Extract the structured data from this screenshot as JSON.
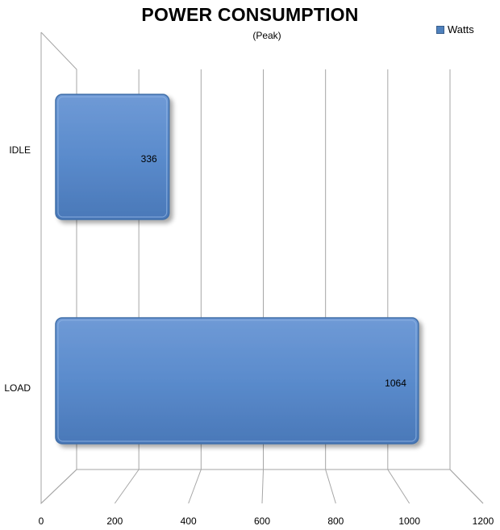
{
  "chart_data": {
    "type": "bar",
    "orientation": "horizontal",
    "title": "POWER CONSUMPTION",
    "subtitle": "(Peak)",
    "categories": [
      "IDLE",
      "LOAD"
    ],
    "series": [
      {
        "name": "Watts",
        "values": [
          336,
          1064
        ],
        "color": "#4f81bd"
      }
    ],
    "xlim": [
      0,
      1200
    ],
    "xticks": [
      0,
      200,
      400,
      600,
      800,
      1000,
      1200
    ],
    "grid": true,
    "legend_position": "top-right",
    "data_labels": [
      "336",
      "1064"
    ]
  }
}
